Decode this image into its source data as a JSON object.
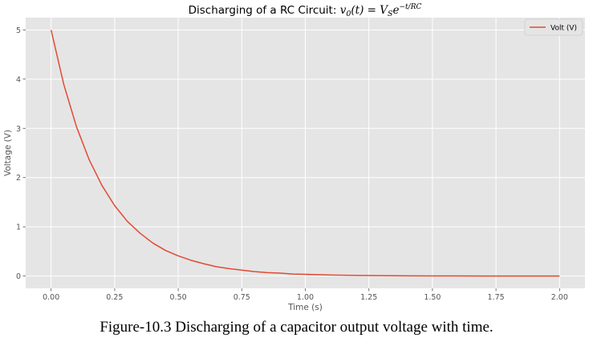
{
  "chart_data": {
    "type": "line",
    "title_prefix": "Discharging of a RC Circuit: ",
    "title_formula": {
      "v": "v",
      "v_sub": "0",
      "t": "(t) = ",
      "V": "V",
      "V_sub": "S",
      "e": "e",
      "exponent": "−t/RC"
    },
    "xlabel": "Time (s)",
    "ylabel": "Voltage (V)",
    "xlim": [
      -0.1,
      2.1
    ],
    "ylim": [
      -0.25,
      5.25
    ],
    "xticks": [
      "0.00",
      "0.25",
      "0.50",
      "0.75",
      "1.00",
      "1.25",
      "1.50",
      "1.75",
      "2.00"
    ],
    "yticks": [
      "0",
      "1",
      "2",
      "3",
      "4",
      "5"
    ],
    "grid": true,
    "legend_position": "top-right",
    "series": [
      {
        "name": "Volt (V)",
        "color": "#E24A33",
        "x": [
          0.0,
          0.05,
          0.1,
          0.15,
          0.2,
          0.25,
          0.3,
          0.35,
          0.4,
          0.45,
          0.5,
          0.55,
          0.6,
          0.65,
          0.7,
          0.75,
          0.8,
          0.85,
          0.9,
          0.95,
          1.0,
          1.1,
          1.2,
          1.3,
          1.4,
          1.5,
          1.6,
          1.7,
          1.8,
          1.9,
          2.0
        ],
        "y": [
          5.0,
          3.89,
          3.03,
          2.36,
          1.84,
          1.43,
          1.11,
          0.87,
          0.67,
          0.52,
          0.41,
          0.32,
          0.25,
          0.19,
          0.15,
          0.12,
          0.09,
          0.07,
          0.06,
          0.04,
          0.034,
          0.021,
          0.012,
          0.0075,
          0.0046,
          0.0028,
          0.0017,
          0.001,
          0.0006,
          0.0004,
          0.0002
        ]
      }
    ]
  },
  "caption": "Figure-10.3 Discharging of a capacitor output voltage with time."
}
